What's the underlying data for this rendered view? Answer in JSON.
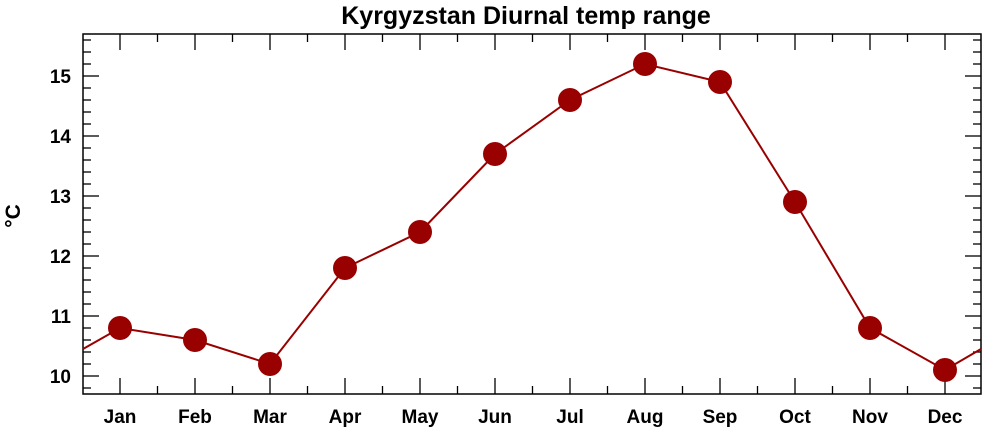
{
  "chart_data": {
    "type": "line",
    "title": "Kyrgyzstan Diurnal temp range",
    "xlabel": "",
    "ylabel": "°C",
    "categories": [
      "Jan",
      "Feb",
      "Mar",
      "Apr",
      "May",
      "Jun",
      "Jul",
      "Aug",
      "Sep",
      "Oct",
      "Nov",
      "Dec"
    ],
    "series": [
      {
        "values": [
          10.8,
          10.6,
          10.2,
          11.8,
          12.4,
          13.7,
          14.6,
          15.2,
          14.9,
          12.9,
          10.8,
          10.1
        ]
      }
    ],
    "ylim": [
      9.7,
      15.7
    ],
    "yticks": [
      10,
      11,
      12,
      13,
      14,
      15
    ],
    "grid": false,
    "legend": "none",
    "colors": {
      "line": "#990000",
      "marker": "#990000"
    }
  }
}
